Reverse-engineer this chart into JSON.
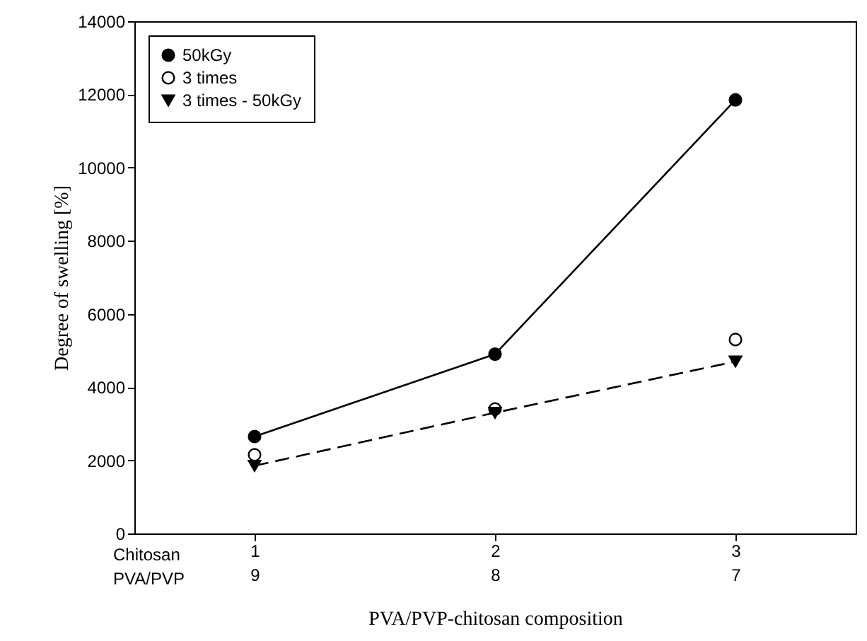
{
  "chart_data": {
    "type": "line",
    "xlabel": "PVA/PVP-chitosan composition",
    "ylabel": "Degree of swelling [%]",
    "categories": [
      "1\n9",
      "2\n8",
      "3\n7"
    ],
    "ylim": [
      0,
      14000
    ],
    "yticks": [
      0,
      2000,
      4000,
      6000,
      8000,
      10000,
      12000,
      14000
    ],
    "series": [
      {
        "name": "50kGy",
        "color": "#000000",
        "marker": "circle",
        "line_style": "solid",
        "values": [
          2650,
          4900,
          11850
        ]
      },
      {
        "name": "3 times",
        "color": "#000000",
        "type": "scatter",
        "marker": "circle",
        "values": [
          2150,
          3400,
          5300
        ]
      },
      {
        "name": "3 times - 50kGy",
        "color": "#000000",
        "marker": "triangle",
        "line_style": "dashed",
        "values": [
          1850,
          3300,
          4700
        ]
      }
    ],
    "annotations": [
      "Chitosan",
      "PVA/PVP"
    ],
    "grid": false,
    "legend": "top left"
  }
}
